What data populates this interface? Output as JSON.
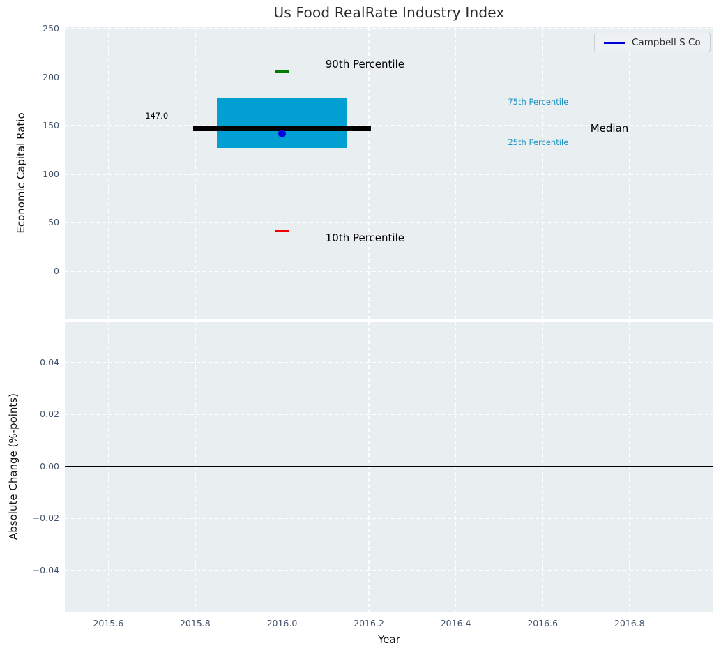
{
  "title": "Us Food RealRate Industry Index",
  "legend": {
    "label": "Campbell S Co",
    "line_color": "#0000dd"
  },
  "colors": {
    "figure_bg": "#ffffff",
    "plot_bg": "#e9eef0",
    "grid": "#ffffff",
    "tick_label": "#42536b",
    "title_text": "#2b2b2b",
    "axis_label": "#111111",
    "box_fill": "#019fd2",
    "median_line": "#000000",
    "whisker": "#7a7a7a",
    "cap_90": "#007d00",
    "cap_10": "#ef0000",
    "company_dot": "#0000dd",
    "percentile_text": "#2095c3",
    "annotation_text": "#000000",
    "zero_line": "#000000"
  },
  "chart_data": [
    {
      "type": "boxplot",
      "title": "Us Food RealRate Industry Index",
      "ylabel": "Economic Capital Ratio",
      "xlim": [
        2015.5,
        2016.993
      ],
      "ylim": [
        -48.8,
        251.4
      ],
      "grid": true,
      "legend_position": "upper right",
      "xticks": [
        {
          "v": 2015.6
        },
        {
          "v": 2015.8
        },
        {
          "v": 2016.0
        },
        {
          "v": 2016.2
        },
        {
          "v": 2016.4
        },
        {
          "v": 2016.6
        },
        {
          "v": 2016.8
        }
      ],
      "yticks": [
        {
          "v": 0,
          "label": "0"
        },
        {
          "v": 50,
          "label": "50"
        },
        {
          "v": 100,
          "label": "100"
        },
        {
          "v": 150,
          "label": "150"
        },
        {
          "v": 200,
          "label": "200"
        },
        {
          "v": 250,
          "label": "250"
        }
      ],
      "box": {
        "x": 2016.0,
        "p10": 41,
        "p25": 127.5,
        "median": 147.0,
        "p75": 178.5,
        "p90": 206,
        "box_half_width": 0.15,
        "median_half_width": 0.205,
        "cap_half_width": 0.016
      },
      "company_point": {
        "name": "Campbell S Co",
        "x": 2016.0,
        "y": 142
      },
      "annotations": [
        {
          "id": "median-value-label",
          "text": "147.0",
          "x": 2015.685,
          "y": 160,
          "size": 11.5,
          "color": "#000000"
        },
        {
          "id": "p90-annotation",
          "text": "90th Percentile",
          "x": 2016.1,
          "y": 213.5,
          "size": 15,
          "color": "#000000"
        },
        {
          "id": "p10-annotation",
          "text": "10th Percentile",
          "x": 2016.1,
          "y": 34.5,
          "size": 15,
          "color": "#000000"
        },
        {
          "id": "p75-annotation",
          "text": "75th Percentile",
          "x": 2016.52,
          "y": 174.5,
          "size": 11.5,
          "color": "#2095c3"
        },
        {
          "id": "p25-annotation",
          "text": "25th Percentile",
          "x": 2016.52,
          "y": 133,
          "size": 11.5,
          "color": "#2095c3"
        },
        {
          "id": "median-annotation",
          "text": "Median",
          "x": 2016.71,
          "y": 147.5,
          "size": 15,
          "color": "#000000"
        }
      ]
    },
    {
      "type": "line",
      "xlabel": "Year",
      "ylabel": "Absolute Change (%-points)",
      "xlim": [
        2015.5,
        2016.993
      ],
      "ylim": [
        -0.0561,
        0.0558
      ],
      "grid": true,
      "zero_line": 0.0,
      "series": [],
      "xticks": [
        {
          "v": 2015.6,
          "label": "2015.6"
        },
        {
          "v": 2015.8,
          "label": "2015.8"
        },
        {
          "v": 2016.0,
          "label": "2016.0"
        },
        {
          "v": 2016.2,
          "label": "2016.2"
        },
        {
          "v": 2016.4,
          "label": "2016.4"
        },
        {
          "v": 2016.6,
          "label": "2016.6"
        },
        {
          "v": 2016.8,
          "label": "2016.8"
        }
      ],
      "yticks": [
        {
          "v": 0.04,
          "label": "0.04"
        },
        {
          "v": 0.02,
          "label": "0.02"
        },
        {
          "v": 0.0,
          "label": "0.00"
        },
        {
          "v": -0.02,
          "label": "−0.02"
        },
        {
          "v": -0.04,
          "label": "−0.04"
        }
      ]
    }
  ]
}
